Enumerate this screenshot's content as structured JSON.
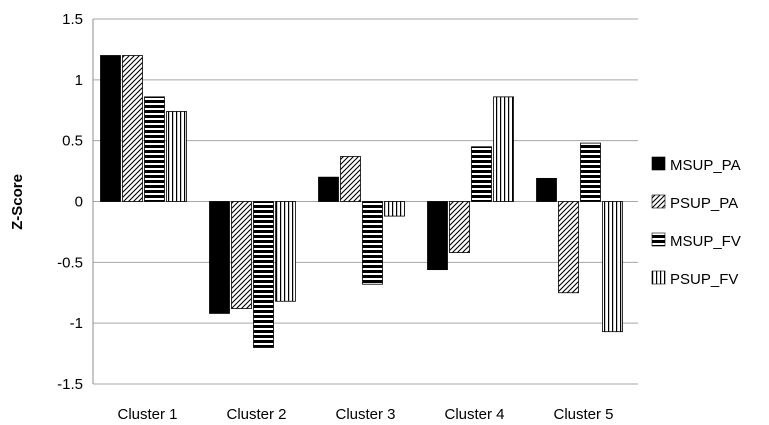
{
  "chart_data": {
    "type": "bar",
    "title": "",
    "xlabel": "",
    "ylabel": "Z-Score",
    "ylim": [
      -1.5,
      1.5
    ],
    "yticks": [
      "1.5",
      "1",
      "0.5",
      "0",
      "-0.5",
      "-1",
      "-1.5"
    ],
    "ytick_values": [
      1.5,
      1,
      0.5,
      0,
      -0.5,
      -1,
      -1.5
    ],
    "grid": "horizontal",
    "legend_position": "right",
    "categories": [
      "Cluster 1",
      "Cluster 2",
      "Cluster 3",
      "Cluster 4",
      "Cluster 5"
    ],
    "series": [
      {
        "name": "MSUP_PA",
        "pattern": "solid",
        "values": [
          1.2,
          -0.92,
          0.2,
          -0.56,
          0.19
        ]
      },
      {
        "name": "PSUP_PA",
        "pattern": "diagonal",
        "values": [
          1.2,
          -0.88,
          0.37,
          -0.42,
          -0.75
        ]
      },
      {
        "name": "MSUP_FV",
        "pattern": "horizontal",
        "values": [
          0.86,
          -1.2,
          -0.68,
          0.45,
          0.48
        ]
      },
      {
        "name": "PSUP_FV",
        "pattern": "vertical",
        "values": [
          0.74,
          -0.82,
          -0.12,
          0.86,
          -1.07
        ]
      }
    ],
    "colors": {
      "bar_fill": "#000000",
      "bar_stroke": "#000000",
      "grid": "#a6a6a6",
      "axis": "#8c8c8c"
    }
  }
}
